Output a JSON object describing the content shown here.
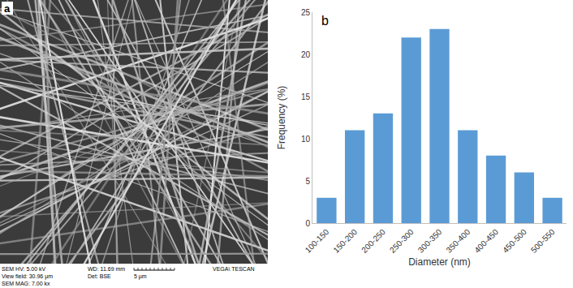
{
  "chart_data": {
    "type": "bar",
    "categories": [
      "100-150",
      "150-200",
      "200-250",
      "250-300",
      "300-350",
      "350-400",
      "400-450",
      "450-500",
      "500-550"
    ],
    "values": [
      3,
      11,
      13,
      22,
      23,
      11,
      8,
      6,
      3
    ],
    "color": "#5b9bd5",
    "x_label": "Diameter (nm)",
    "y_label": "Frequency (%)",
    "ylim": [
      0,
      25
    ],
    "yticks": [
      0,
      5,
      10,
      15,
      20,
      25
    ],
    "grid": false,
    "annotations": [
      "b"
    ]
  },
  "image_panel": {
    "label": "a",
    "hv": "SEM HV: 5.00 kV",
    "wd": "WD: 11.69 mm",
    "brand": "VEGA\\ TESCAN",
    "view_field": "View field: 30.96 µm",
    "det": "Det: BSE",
    "scale_bar": "5 µm",
    "mag": "SEM MAG: 7.00 kx"
  }
}
